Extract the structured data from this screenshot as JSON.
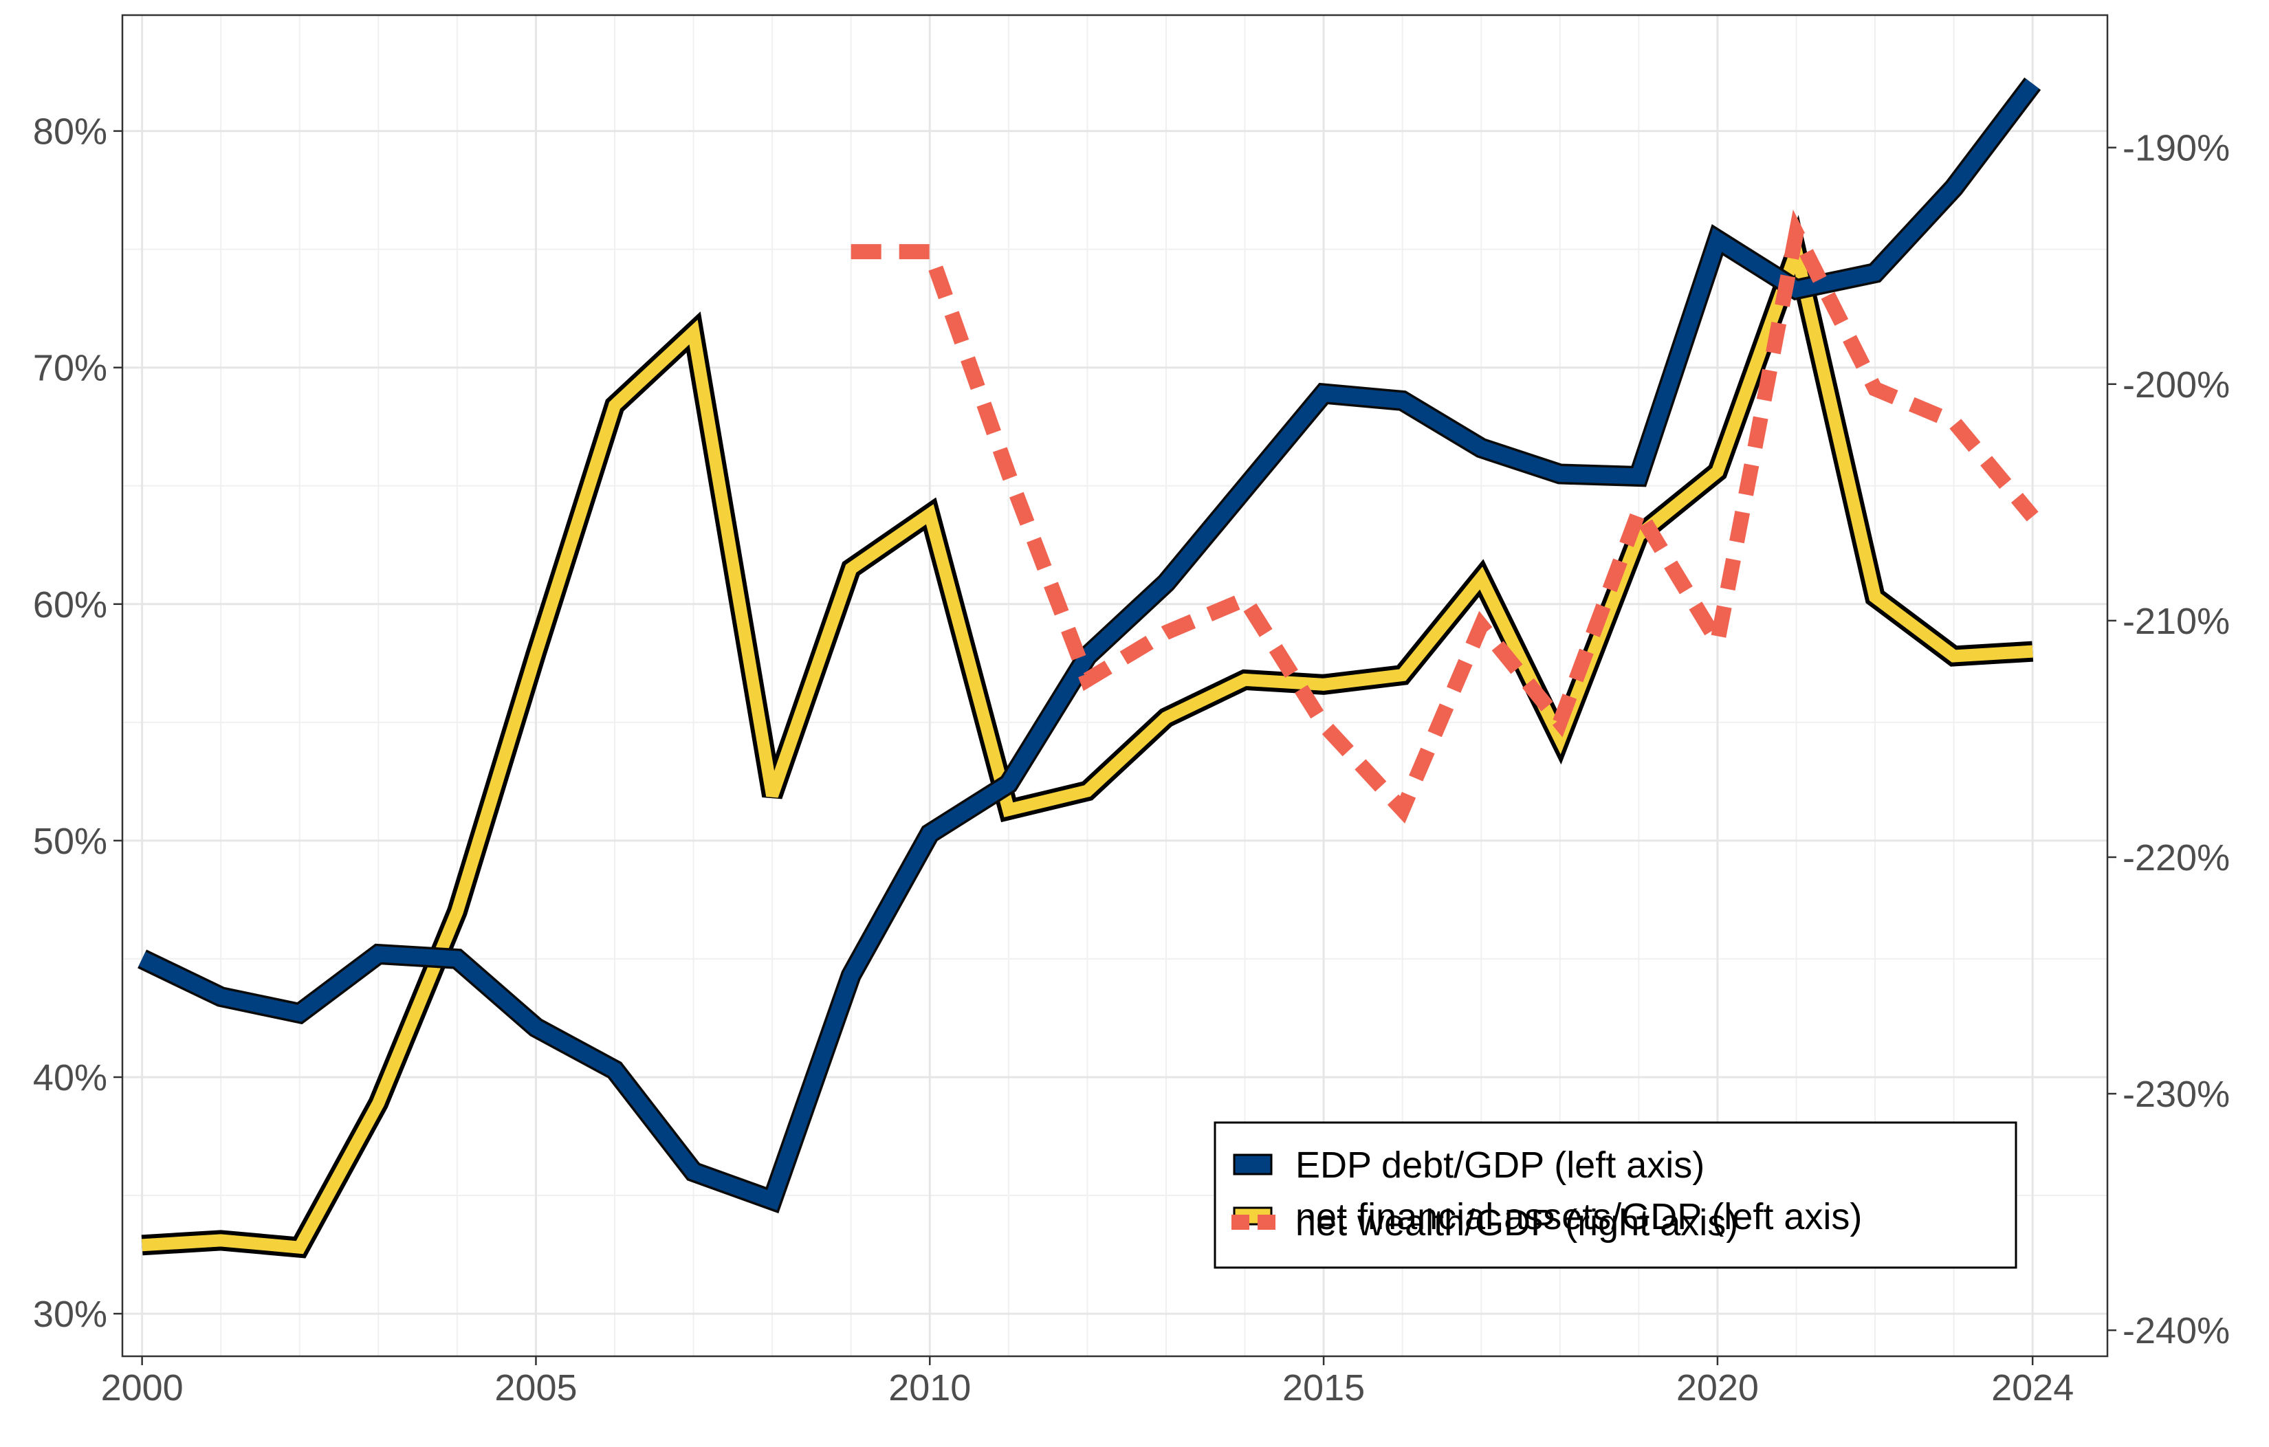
{
  "chart_data": {
    "type": "line",
    "title": "",
    "xlabel": "",
    "ylabel": "",
    "y2label": "",
    "x": [
      2000,
      2001,
      2002,
      2003,
      2004,
      2005,
      2006,
      2007,
      2008,
      2009,
      2010,
      2011,
      2012,
      2013,
      2014,
      2015,
      2016,
      2017,
      2018,
      2019,
      2020,
      2021,
      2022,
      2023,
      2024
    ],
    "xlim": [
      1999.75,
      2024.95
    ],
    "ylim": [
      28.2,
      84.9
    ],
    "y2lim": [
      -241.1,
      -184.4
    ],
    "x_ticks": [
      2000,
      2005,
      2010,
      2015,
      2020,
      2024
    ],
    "x_tick_labels": [
      "2000",
      "2005",
      "2010",
      "2015",
      "2020",
      "2024"
    ],
    "y_ticks": [
      30,
      40,
      50,
      60,
      70,
      80
    ],
    "y_tick_labels": [
      "30%",
      "40%",
      "50%",
      "60%",
      "70%",
      "80%"
    ],
    "y2_ticks": [
      -240,
      -230,
      -220,
      -210,
      -200,
      -190
    ],
    "y2_tick_labels": [
      "-240%",
      "-230%",
      "-220%",
      "-210%",
      "-200%",
      "-190%"
    ],
    "grid": true,
    "legend_position": "bottom-right",
    "series": [
      {
        "name": "EDP debt/GDP (left axis)",
        "axis": "left",
        "color": "#003f7f",
        "style": "solid-thick",
        "values": [
          45.0,
          43.4,
          42.7,
          45.2,
          45.0,
          42.1,
          40.3,
          36.0,
          34.8,
          44.3,
          50.3,
          52.4,
          57.8,
          60.9,
          64.9,
          68.9,
          68.6,
          66.6,
          65.5,
          65.4,
          75.4,
          73.3,
          74.0,
          77.6,
          82.0
        ]
      },
      {
        "name": "net financial assets/GDP (left axis)",
        "axis": "left",
        "color": "#f5d13b",
        "style": "solid-outlined",
        "values": [
          32.9,
          33.1,
          32.8,
          38.9,
          47.0,
          57.9,
          68.4,
          71.5,
          51.9,
          61.5,
          63.8,
          51.3,
          52.1,
          55.2,
          56.8,
          56.6,
          57.0,
          61.1,
          54.3,
          62.9,
          65.6,
          74.9,
          60.3,
          57.8,
          58.0
        ]
      },
      {
        "name": "net wealth/GDP (right axis)",
        "axis": "right",
        "color": "#f06351",
        "style": "dashed",
        "values": [
          null,
          null,
          null,
          null,
          null,
          null,
          null,
          null,
          null,
          -194.4,
          -194.4,
          -203.8,
          -212.5,
          -210.5,
          -209.1,
          -214.4,
          -218.0,
          -210.2,
          -214.3,
          -205.4,
          -210.9,
          -193.6,
          -200.2,
          -201.6,
          -205.6
        ]
      }
    ]
  }
}
